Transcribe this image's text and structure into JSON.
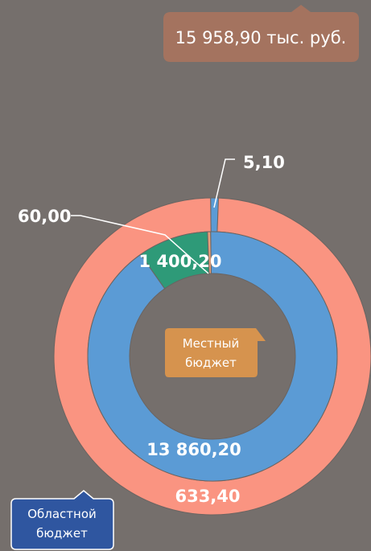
{
  "total_label": "15 958,90 тыс. руб.",
  "legend": {
    "local": "Местный бюджет",
    "regional": "Областной бюджет"
  },
  "colors": {
    "background": "#756f6c",
    "outer_ring_main": "#fa9481",
    "inner_ring_main": "#5b9bd5",
    "green": "#2e9a78",
    "thin_slice": "#e8a07b",
    "total_callout": "#a4735f",
    "local_callout": "#d6934e",
    "regional_callout": "#2f56a0"
  },
  "chart_data": [
    {
      "type": "pie",
      "name": "outer-ring",
      "slices": [
        {
          "value": 5.1,
          "label": "5,10",
          "color": "#5b9bd5"
        },
        {
          "value": 633.4,
          "label": "633,40",
          "color": "#fa9481"
        }
      ]
    },
    {
      "type": "pie",
      "name": "inner-ring",
      "slices": [
        {
          "value": 13860.2,
          "label": "13 860,20",
          "color": "#5b9bd5"
        },
        {
          "value": 1400.2,
          "label": "1 400,20",
          "color": "#2e9a78"
        },
        {
          "value": 60.0,
          "label": "60,00",
          "color": "#e8a07b"
        }
      ]
    }
  ]
}
